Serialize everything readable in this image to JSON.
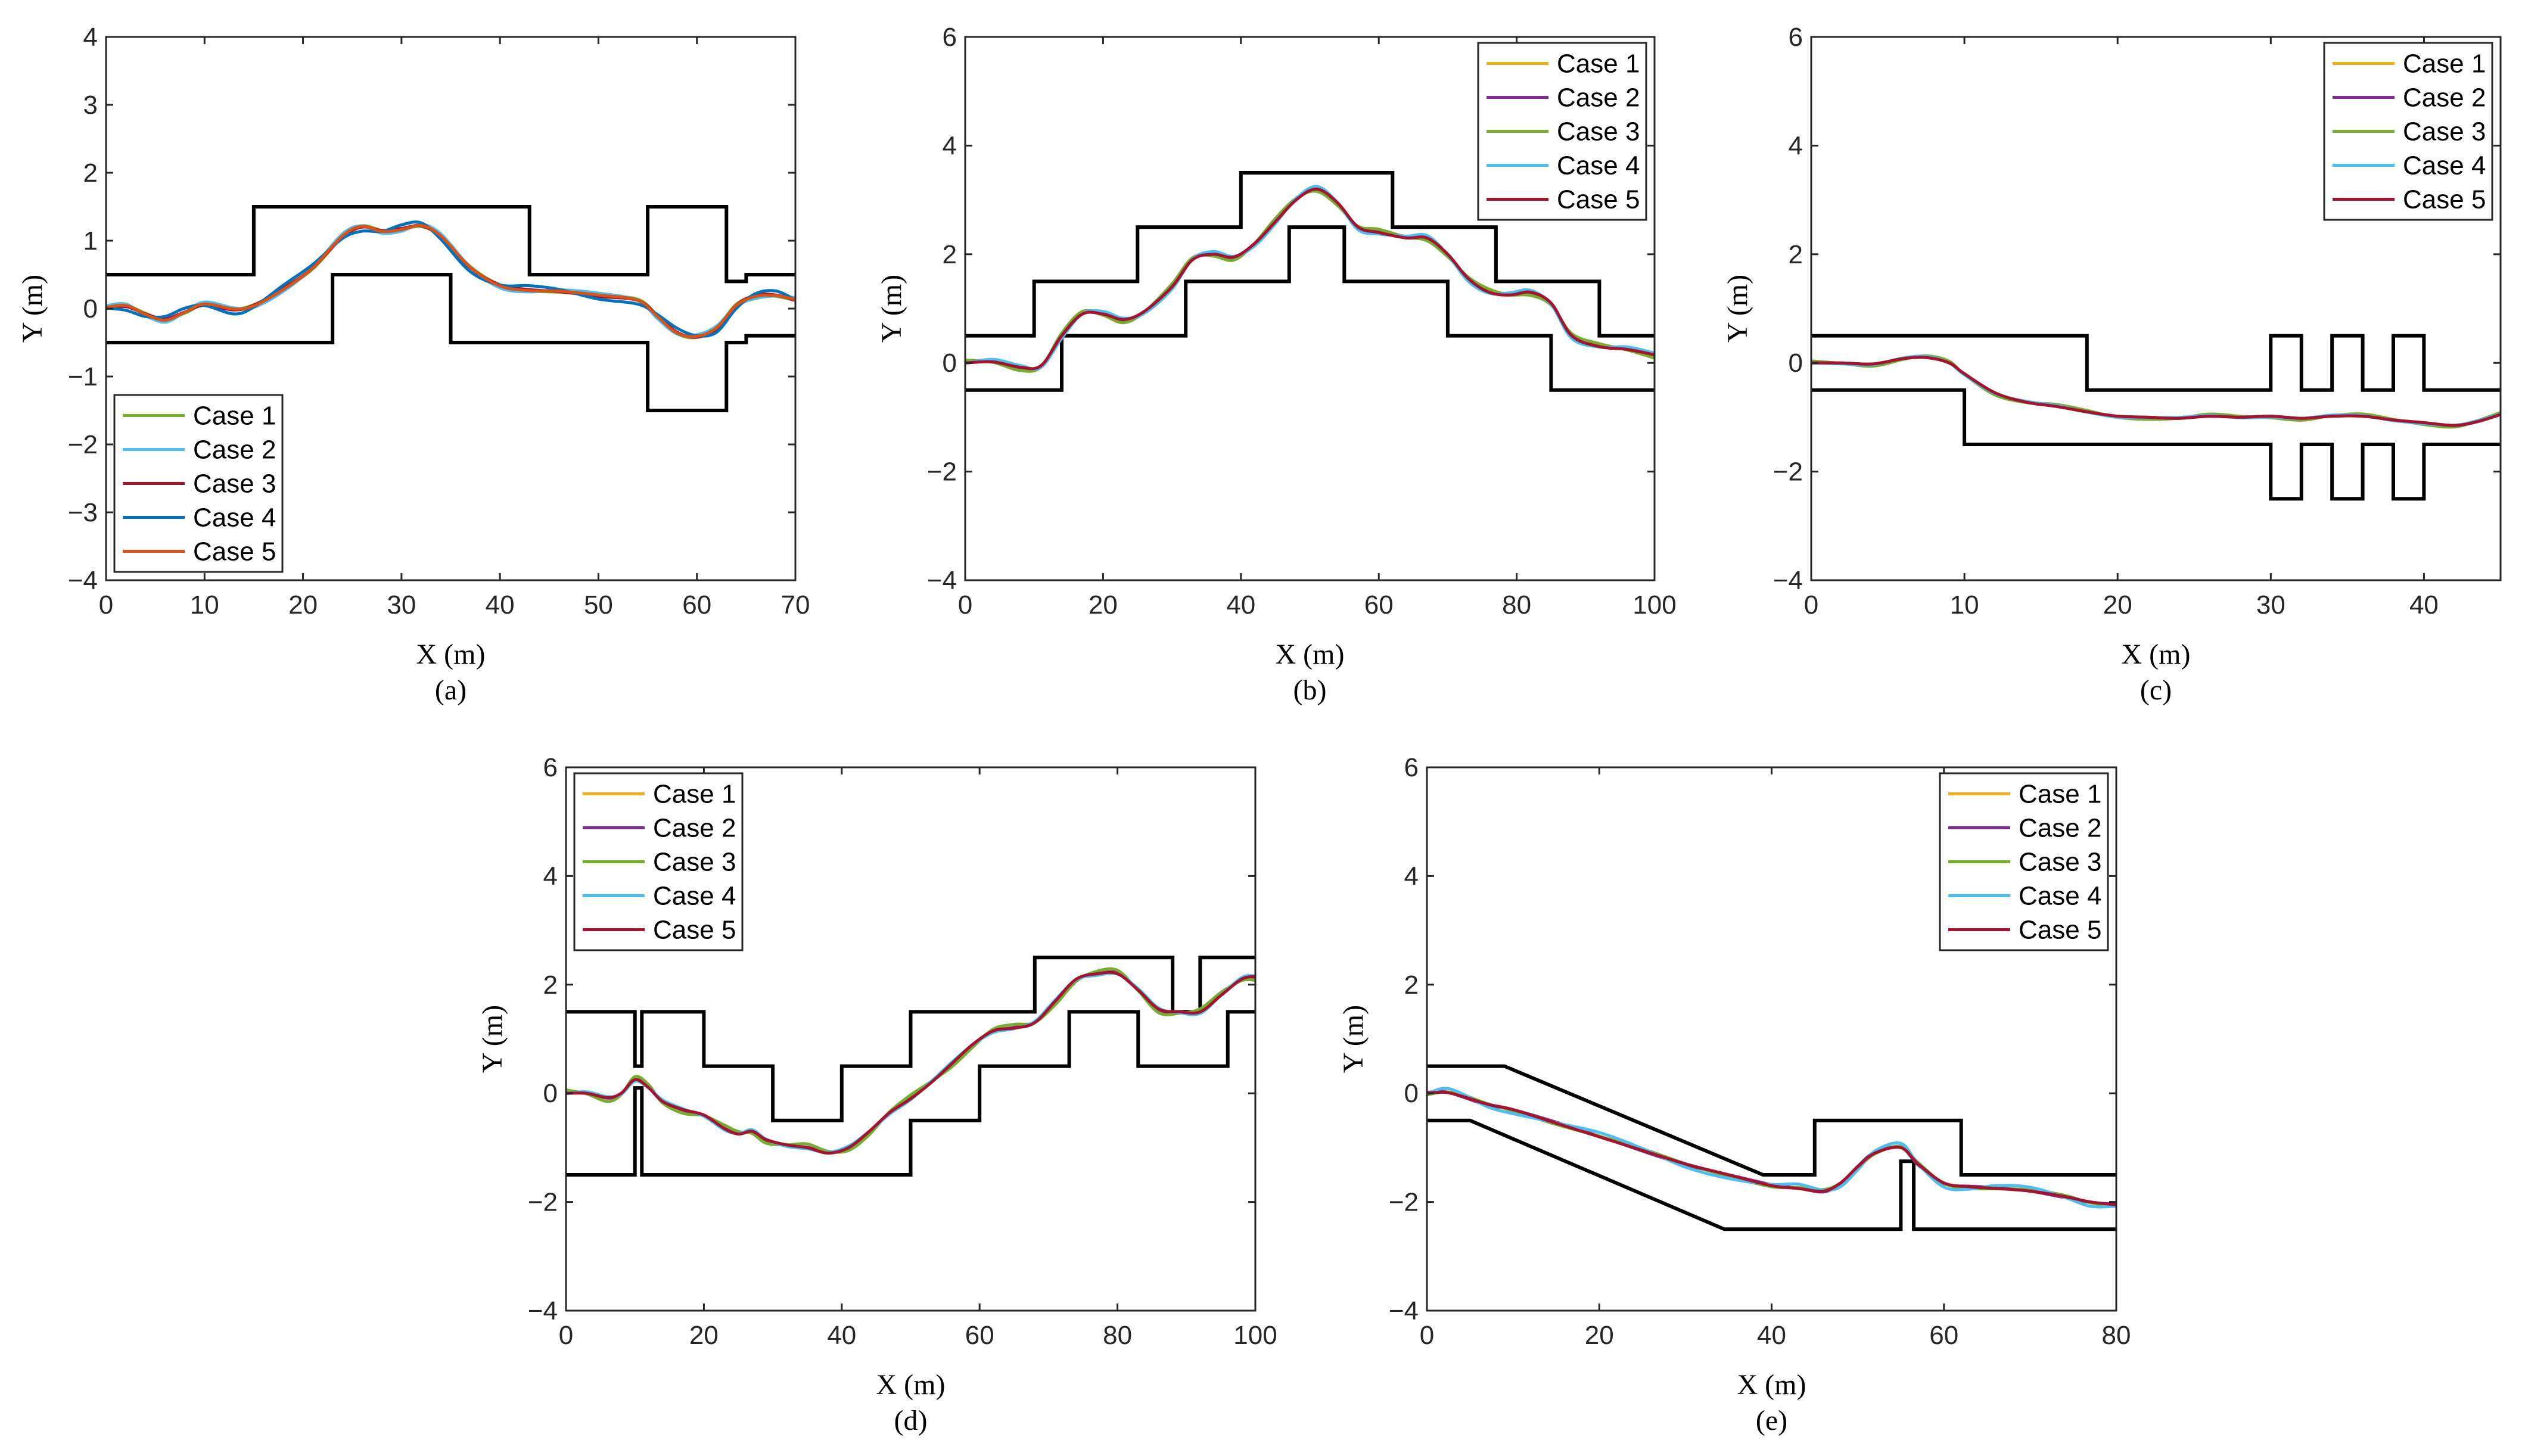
{
  "figure": {
    "layout": "2 rows: 3 panels top, 2 panels bottom"
  },
  "chart_data": [
    {
      "id": "a",
      "type": "line",
      "caption": "(a)",
      "xlabel": "X (m)",
      "ylabel": "Y (m)",
      "xlim": [
        0,
        70
      ],
      "ylim": [
        -4,
        4
      ],
      "xticks": [
        0,
        10,
        20,
        30,
        40,
        50,
        60,
        70
      ],
      "yticks": [
        -4,
        -3,
        -2,
        -1,
        0,
        1,
        2,
        3,
        4
      ],
      "legend_position": "bottom-left",
      "legend": [
        "Case 1",
        "Case 2",
        "Case 3",
        "Case 4",
        "Case 5"
      ],
      "colors": [
        "#77ac30",
        "#4dbeee",
        "#a2142f",
        "#0072bd",
        "#d95319"
      ],
      "boundaries": [
        [
          [
            0,
            0.5
          ],
          [
            15,
            0.5
          ],
          [
            15,
            1.5
          ],
          [
            43,
            1.5
          ],
          [
            43,
            0.5
          ],
          [
            55,
            0.5
          ],
          [
            55,
            1.5
          ],
          [
            63,
            1.5
          ],
          [
            63,
            0.4
          ],
          [
            65,
            0.4
          ],
          [
            65,
            0.5
          ],
          [
            70,
            0.5
          ]
        ],
        [
          [
            0,
            -0.5
          ],
          [
            23,
            -0.5
          ],
          [
            23,
            0.5
          ],
          [
            35,
            0.5
          ],
          [
            35,
            -0.5
          ],
          [
            55,
            -0.5
          ],
          [
            55,
            -1.5
          ],
          [
            63,
            -1.5
          ],
          [
            63,
            -0.5
          ],
          [
            65,
            -0.5
          ],
          [
            65,
            -0.4
          ],
          [
            70,
            -0.4
          ]
        ]
      ],
      "path": [
        [
          0,
          0
        ],
        [
          2,
          0.03
        ],
        [
          4,
          -0.08
        ],
        [
          6,
          -0.15
        ],
        [
          8,
          -0.05
        ],
        [
          10,
          0.05
        ],
        [
          13,
          -0.02
        ],
        [
          15,
          0.05
        ],
        [
          18,
          0.3
        ],
        [
          21,
          0.6
        ],
        [
          24,
          1.05
        ],
        [
          26,
          1.2
        ],
        [
          28,
          1.15
        ],
        [
          30,
          1.18
        ],
        [
          32,
          1.22
        ],
        [
          34,
          1.05
        ],
        [
          37,
          0.6
        ],
        [
          40,
          0.35
        ],
        [
          43,
          0.28
        ],
        [
          46,
          0.25
        ],
        [
          50,
          0.18
        ],
        [
          54,
          0.12
        ],
        [
          56,
          -0.1
        ],
        [
          58,
          -0.35
        ],
        [
          60,
          -0.42
        ],
        [
          62,
          -0.3
        ],
        [
          64,
          0.05
        ],
        [
          66,
          0.2
        ],
        [
          68,
          0.2
        ],
        [
          70,
          0.12
        ]
      ],
      "offsets": [
        0.02,
        0.05,
        0.0,
        0.06,
        -0.02
      ]
    },
    {
      "id": "b",
      "type": "line",
      "caption": "(b)",
      "xlabel": "X (m)",
      "ylabel": "Y (m)",
      "xlim": [
        0,
        100
      ],
      "ylim": [
        -4,
        6
      ],
      "xticks": [
        0,
        20,
        40,
        60,
        80,
        100
      ],
      "yticks": [
        -4,
        -2,
        0,
        2,
        4,
        6
      ],
      "legend_position": "top-right",
      "legend": [
        "Case 1",
        "Case 2",
        "Case 3",
        "Case 4",
        "Case 5"
      ],
      "colors": [
        "#edb120",
        "#7e2f8e",
        "#77ac30",
        "#4dbeee",
        "#a2142f"
      ],
      "boundaries": [
        [
          [
            0,
            0.5
          ],
          [
            10,
            0.5
          ],
          [
            10,
            1.5
          ],
          [
            25,
            1.5
          ],
          [
            25,
            2.5
          ],
          [
            40,
            2.5
          ],
          [
            40,
            3.5
          ],
          [
            62,
            3.5
          ],
          [
            62,
            2.5
          ],
          [
            77,
            2.5
          ],
          [
            77,
            1.5
          ],
          [
            92,
            1.5
          ],
          [
            92,
            0.5
          ],
          [
            100,
            0.5
          ]
        ],
        [
          [
            0,
            -0.5
          ],
          [
            14,
            -0.5
          ],
          [
            14,
            0.5
          ],
          [
            32,
            0.5
          ],
          [
            32,
            1.5
          ],
          [
            47,
            1.5
          ],
          [
            47,
            2.5
          ],
          [
            55,
            2.5
          ],
          [
            55,
            1.5
          ],
          [
            70,
            1.5
          ],
          [
            70,
            0.5
          ],
          [
            85,
            0.5
          ],
          [
            85,
            -0.5
          ],
          [
            100,
            -0.5
          ]
        ]
      ],
      "path": [
        [
          0,
          0
        ],
        [
          4,
          0.02
        ],
        [
          8,
          -0.08
        ],
        [
          11,
          -0.05
        ],
        [
          14,
          0.5
        ],
        [
          17,
          0.9
        ],
        [
          20,
          0.9
        ],
        [
          23,
          0.8
        ],
        [
          26,
          0.95
        ],
        [
          30,
          1.4
        ],
        [
          33,
          1.9
        ],
        [
          36,
          2.0
        ],
        [
          39,
          1.95
        ],
        [
          42,
          2.2
        ],
        [
          45,
          2.6
        ],
        [
          48,
          3.0
        ],
        [
          51,
          3.2
        ],
        [
          54,
          2.95
        ],
        [
          57,
          2.5
        ],
        [
          60,
          2.4
        ],
        [
          64,
          2.3
        ],
        [
          67,
          2.3
        ],
        [
          70,
          2.0
        ],
        [
          73,
          1.55
        ],
        [
          76,
          1.3
        ],
        [
          79,
          1.25
        ],
        [
          82,
          1.3
        ],
        [
          85,
          1.1
        ],
        [
          88,
          0.5
        ],
        [
          92,
          0.3
        ],
        [
          96,
          0.25
        ],
        [
          100,
          0.15
        ]
      ],
      "offsets": [
        0.0,
        0.03,
        0.06,
        -0.05,
        0.0
      ]
    },
    {
      "id": "c",
      "type": "line",
      "caption": "(c)",
      "xlabel": "X (m)",
      "ylabel": "Y (m)",
      "xlim": [
        0,
        45
      ],
      "ylim": [
        -4,
        6
      ],
      "xticks": [
        0,
        10,
        20,
        30,
        40
      ],
      "yticks": [
        -4,
        -2,
        0,
        2,
        4,
        6
      ],
      "legend_position": "top-right",
      "legend": [
        "Case 1",
        "Case 2",
        "Case 3",
        "Case 4",
        "Case 5"
      ],
      "colors": [
        "#edb120",
        "#7e2f8e",
        "#77ac30",
        "#4dbeee",
        "#a2142f"
      ],
      "boundaries": [
        [
          [
            0,
            0.5
          ],
          [
            18,
            0.5
          ],
          [
            18,
            -0.5
          ],
          [
            30,
            -0.5
          ],
          [
            30,
            0.5
          ],
          [
            32,
            0.5
          ],
          [
            32,
            -0.5
          ],
          [
            34,
            -0.5
          ],
          [
            34,
            0.5
          ],
          [
            36,
            0.5
          ],
          [
            36,
            -0.5
          ],
          [
            38,
            -0.5
          ],
          [
            38,
            0.5
          ],
          [
            40,
            0.5
          ],
          [
            40,
            -0.5
          ],
          [
            45,
            -0.5
          ]
        ],
        [
          [
            0,
            -0.5
          ],
          [
            10,
            -0.5
          ],
          [
            10,
            -1.5
          ],
          [
            30,
            -1.5
          ],
          [
            30,
            -2.5
          ],
          [
            32,
            -2.5
          ],
          [
            32,
            -1.5
          ],
          [
            34,
            -1.5
          ],
          [
            34,
            -2.5
          ],
          [
            36,
            -2.5
          ],
          [
            36,
            -1.5
          ],
          [
            38,
            -1.5
          ],
          [
            38,
            -2.5
          ],
          [
            40,
            -2.5
          ],
          [
            40,
            -1.5
          ],
          [
            45,
            -1.5
          ]
        ]
      ],
      "path": [
        [
          0,
          0
        ],
        [
          2,
          0
        ],
        [
          4,
          -0.02
        ],
        [
          6,
          0.08
        ],
        [
          7.5,
          0.1
        ],
        [
          9,
          0
        ],
        [
          10,
          -0.2
        ],
        [
          12,
          -0.55
        ],
        [
          14,
          -0.72
        ],
        [
          16,
          -0.8
        ],
        [
          18,
          -0.9
        ],
        [
          20,
          -0.98
        ],
        [
          22,
          -1.0
        ],
        [
          24,
          -1.02
        ],
        [
          26,
          -0.98
        ],
        [
          28,
          -1.0
        ],
        [
          30,
          -0.98
        ],
        [
          32,
          -1.02
        ],
        [
          34,
          -0.98
        ],
        [
          36,
          -0.98
        ],
        [
          38,
          -1.05
        ],
        [
          40,
          -1.1
        ],
        [
          42,
          -1.15
        ],
        [
          43.5,
          -1.08
        ],
        [
          45,
          -0.95
        ]
      ],
      "offsets": [
        0.0,
        0.0,
        0.04,
        0.02,
        0.0
      ]
    },
    {
      "id": "d",
      "type": "line",
      "caption": "(d)",
      "xlabel": "X (m)",
      "ylabel": "Y (m)",
      "xlim": [
        0,
        100
      ],
      "ylim": [
        -4,
        6
      ],
      "xticks": [
        0,
        20,
        40,
        60,
        80,
        100
      ],
      "yticks": [
        -4,
        -2,
        0,
        2,
        4,
        6
      ],
      "legend_position": "top-left",
      "legend": [
        "Case 1",
        "Case 2",
        "Case 3",
        "Case 4",
        "Case 5"
      ],
      "colors": [
        "#edb120",
        "#7e2f8e",
        "#77ac30",
        "#4dbeee",
        "#a2142f"
      ],
      "boundaries": [
        [
          [
            0,
            1.5
          ],
          [
            10,
            1.5
          ],
          [
            10,
            0.5
          ],
          [
            11,
            0.5
          ],
          [
            11,
            1.5
          ],
          [
            20,
            1.5
          ],
          [
            20,
            0.5
          ],
          [
            30,
            0.5
          ],
          [
            30,
            -0.5
          ],
          [
            40,
            -0.5
          ],
          [
            40,
            0.5
          ],
          [
            50,
            0.5
          ],
          [
            50,
            1.5
          ],
          [
            68,
            1.5
          ],
          [
            68,
            2.5
          ],
          [
            88,
            2.5
          ],
          [
            88,
            1.5
          ],
          [
            92,
            1.5
          ],
          [
            92,
            2.5
          ],
          [
            100,
            2.5
          ]
        ],
        [
          [
            0,
            -1.5
          ],
          [
            10,
            -1.5
          ],
          [
            10,
            0.1
          ],
          [
            11,
            0.1
          ],
          [
            11,
            -1.5
          ],
          [
            50,
            -1.5
          ],
          [
            50,
            -0.5
          ],
          [
            60,
            -0.5
          ],
          [
            60,
            0.5
          ],
          [
            73,
            0.5
          ],
          [
            73,
            1.5
          ],
          [
            83,
            1.5
          ],
          [
            83,
            0.5
          ],
          [
            96,
            0.5
          ],
          [
            96,
            1.5
          ],
          [
            100,
            1.5
          ]
        ]
      ],
      "path": [
        [
          0,
          0
        ],
        [
          3,
          0
        ],
        [
          6,
          -0.08
        ],
        [
          8,
          0
        ],
        [
          10,
          0.25
        ],
        [
          12,
          0.1
        ],
        [
          14,
          -0.15
        ],
        [
          17,
          -0.3
        ],
        [
          20,
          -0.4
        ],
        [
          23,
          -0.65
        ],
        [
          25,
          -0.75
        ],
        [
          27,
          -0.7
        ],
        [
          29,
          -0.85
        ],
        [
          32,
          -0.95
        ],
        [
          35,
          -1.0
        ],
        [
          38,
          -1.1
        ],
        [
          41,
          -1.0
        ],
        [
          44,
          -0.7
        ],
        [
          47,
          -0.35
        ],
        [
          50,
          -0.1
        ],
        [
          53,
          0.2
        ],
        [
          56,
          0.55
        ],
        [
          59,
          0.9
        ],
        [
          62,
          1.15
        ],
        [
          65,
          1.2
        ],
        [
          68,
          1.3
        ],
        [
          71,
          1.7
        ],
        [
          74,
          2.1
        ],
        [
          77,
          2.2
        ],
        [
          80,
          2.2
        ],
        [
          83,
          1.9
        ],
        [
          86,
          1.55
        ],
        [
          89,
          1.5
        ],
        [
          92,
          1.5
        ],
        [
          95,
          1.8
        ],
        [
          98,
          2.1
        ],
        [
          100,
          2.15
        ]
      ],
      "offsets": [
        0.0,
        0.02,
        0.07,
        -0.03,
        0.0
      ]
    },
    {
      "id": "e",
      "type": "line",
      "caption": "(e)",
      "xlabel": "X (m)",
      "ylabel": "Y (m)",
      "xlim": [
        0,
        80
      ],
      "ylim": [
        -4,
        6
      ],
      "xticks": [
        0,
        20,
        40,
        60,
        80
      ],
      "yticks": [
        -4,
        -2,
        0,
        2,
        4,
        6
      ],
      "legend_position": "top-right",
      "legend": [
        "Case 1",
        "Case 2",
        "Case 3",
        "Case 4",
        "Case 5"
      ],
      "colors": [
        "#edb120",
        "#7e2f8e",
        "#77ac30",
        "#4dbeee",
        "#a2142f"
      ],
      "boundaries": [
        [
          [
            0,
            0.5
          ],
          [
            9,
            0.5
          ],
          [
            39,
            -1.5
          ],
          [
            45,
            -1.5
          ],
          [
            45,
            -0.5
          ],
          [
            62,
            -0.5
          ],
          [
            62,
            -1.5
          ],
          [
            80,
            -1.5
          ]
        ],
        [
          [
            0,
            -0.5
          ],
          [
            5,
            -0.5
          ],
          [
            34.5,
            -2.5
          ],
          [
            55,
            -2.5
          ],
          [
            55,
            -1.25
          ],
          [
            56.5,
            -1.25
          ],
          [
            56.5,
            -2.5
          ],
          [
            80,
            -2.5
          ]
        ]
      ],
      "path": [
        [
          0,
          0
        ],
        [
          2,
          0.02
        ],
        [
          4,
          -0.05
        ],
        [
          7,
          -0.2
        ],
        [
          10,
          -0.3
        ],
        [
          15,
          -0.55
        ],
        [
          20,
          -0.8
        ],
        [
          25,
          -1.05
        ],
        [
          30,
          -1.3
        ],
        [
          35,
          -1.5
        ],
        [
          40,
          -1.7
        ],
        [
          43,
          -1.75
        ],
        [
          46,
          -1.8
        ],
        [
          48,
          -1.65
        ],
        [
          50,
          -1.35
        ],
        [
          52,
          -1.1
        ],
        [
          55,
          -1.0
        ],
        [
          57,
          -1.3
        ],
        [
          60,
          -1.65
        ],
        [
          63,
          -1.72
        ],
        [
          66,
          -1.75
        ],
        [
          70,
          -1.8
        ],
        [
          74,
          -1.9
        ],
        [
          77,
          -2.0
        ],
        [
          80,
          -2.05
        ]
      ],
      "offsets": [
        0.0,
        0.02,
        -0.03,
        -0.08,
        0.0
      ]
    }
  ]
}
